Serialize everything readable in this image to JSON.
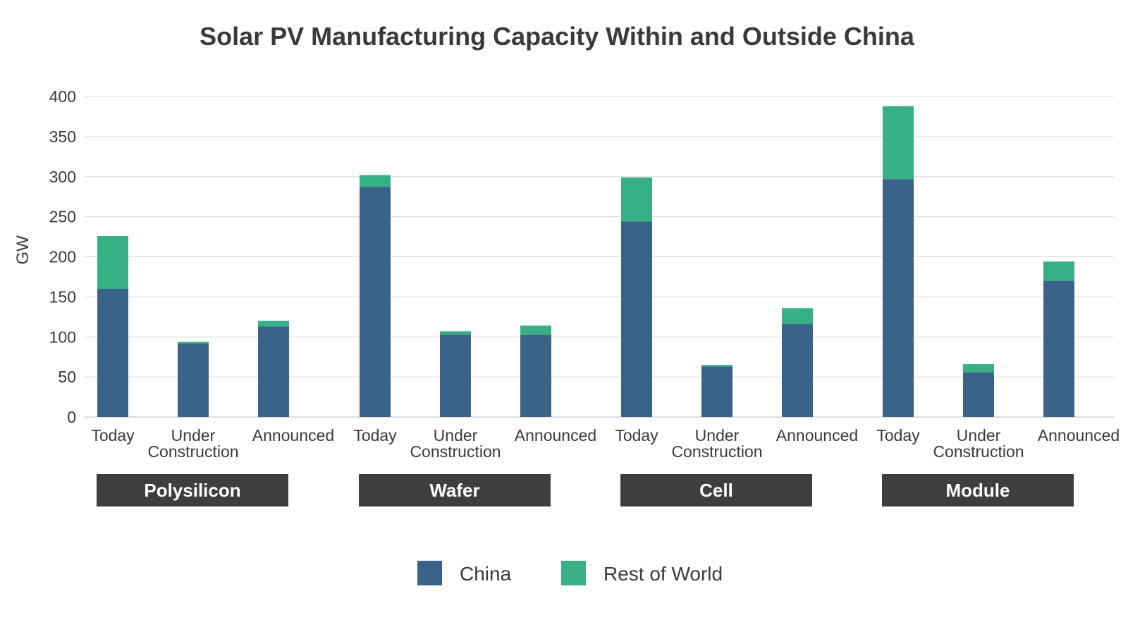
{
  "chart_data": {
    "type": "bar",
    "stacked": true,
    "title": "Solar PV Manufacturing Capacity Within and Outside China",
    "ylabel": "GW",
    "xlabel": "",
    "ylim": [
      0,
      400
    ],
    "yticks": [
      0,
      50,
      100,
      150,
      200,
      250,
      300,
      350,
      400
    ],
    "grid": true,
    "legend_position": "bottom-center",
    "groups": [
      "Polysilicon",
      "Wafer",
      "Cell",
      "Module"
    ],
    "categories": [
      "Today",
      "Under Construction",
      "Announced"
    ],
    "category_labels": [
      [
        "Today"
      ],
      [
        "Under",
        "Construction"
      ],
      [
        "Announced"
      ]
    ],
    "series": [
      {
        "name": "China",
        "color": "#3a6389",
        "values": [
          [
            160,
            92,
            113
          ],
          [
            287,
            103,
            103
          ],
          [
            244,
            63,
            116
          ],
          [
            297,
            56,
            170
          ]
        ]
      },
      {
        "name": "Rest of World",
        "color": "#37b086",
        "values": [
          [
            66,
            2,
            7
          ],
          [
            15,
            4,
            11
          ],
          [
            55,
            2,
            20
          ],
          [
            91,
            10,
            24
          ]
        ]
      }
    ],
    "group_label_color": "#3e3e3e",
    "grid_color": "#d9d9d9"
  }
}
